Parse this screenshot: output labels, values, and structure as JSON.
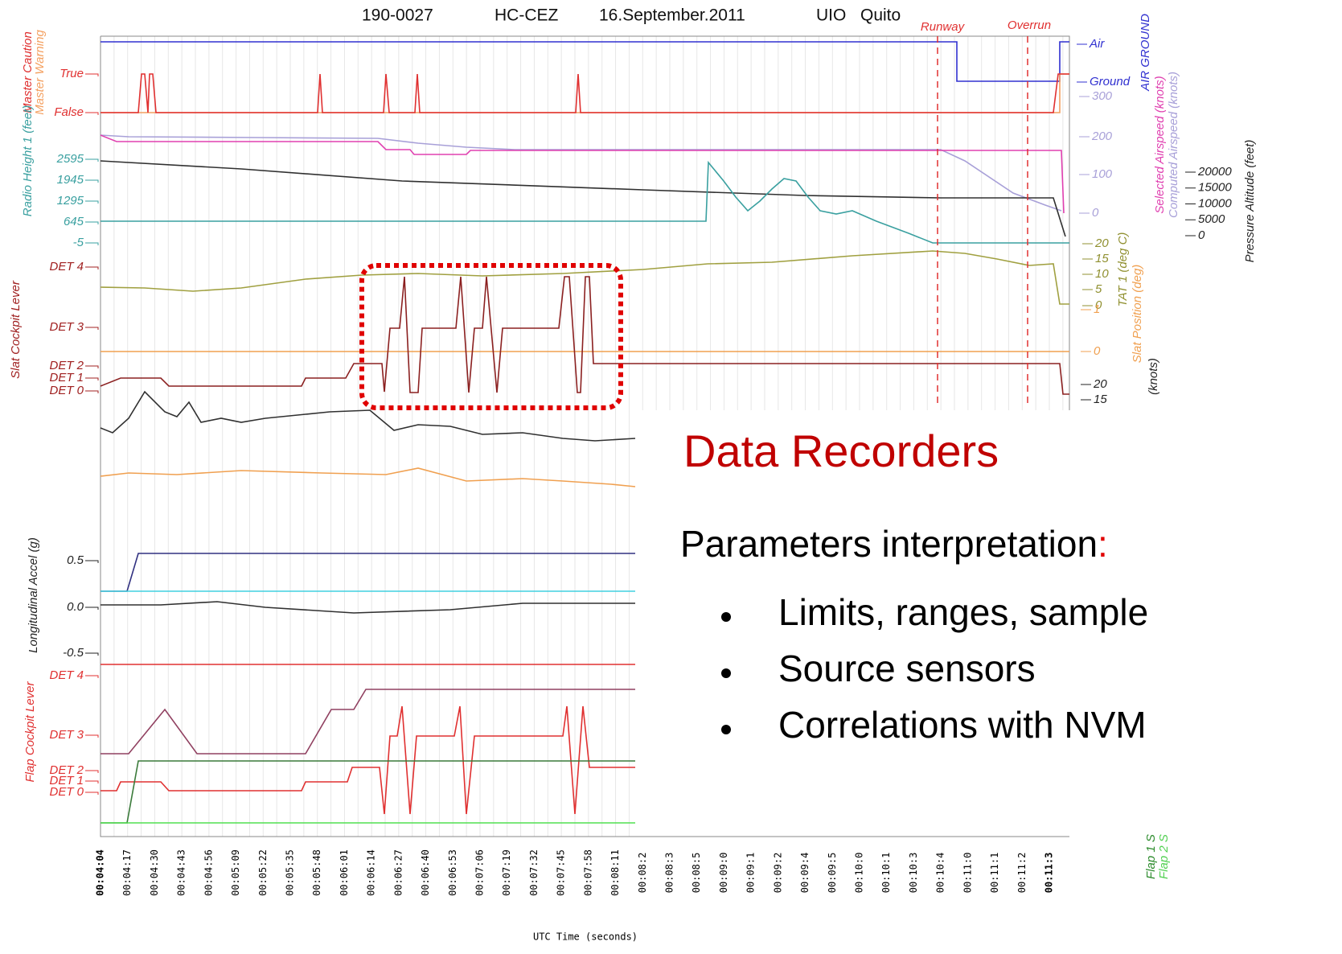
{
  "header": {
    "flight": "190-0027",
    "registration": "HC-CEZ",
    "date": "16.September.2011",
    "airport": "UIO",
    "city": "Quito"
  },
  "markers": [
    "Runway",
    "Overrun"
  ],
  "left_axes": [
    {
      "labels": [
        "Master Caution",
        "Master Warning"
      ],
      "ticks": [
        "True",
        "False"
      ]
    },
    {
      "labels": [
        "Radio Height 1 (feet)"
      ],
      "ticks": [
        "2595",
        "1945",
        "1295",
        "645",
        "-5"
      ]
    },
    {
      "labels": [
        "Slat Cockpit Lever"
      ],
      "ticks": [
        "DET 4",
        "DET 3",
        "DET 2",
        "DET 1",
        "DET 0"
      ]
    },
    {
      "labels": [
        "Longitudinal Accel (g)"
      ],
      "ticks": [
        "0.5",
        "0.0",
        "-0.5"
      ]
    },
    {
      "labels": [
        "Flap Cockpit Lever"
      ],
      "ticks": [
        "DET 4",
        "DET 3",
        "DET 2",
        "DET 1",
        "DET 0"
      ]
    }
  ],
  "right_axes": [
    {
      "labels": [
        "AIR GROUND"
      ],
      "ticks": [
        "Air",
        "Ground"
      ]
    },
    {
      "labels": [
        "Selected Airspeed (knots)",
        "Computed Airspeed (knots)"
      ],
      "ticks": [
        "300",
        "200",
        "100",
        "0"
      ]
    },
    {
      "labels": [
        "Pressure Altitude (feet)"
      ],
      "ticks": [
        "20000",
        "15000",
        "10000",
        "5000",
        "0"
      ]
    },
    {
      "labels": [
        "TAT 1 (deg C)"
      ],
      "ticks": [
        "20",
        "15",
        "10",
        "5",
        "0"
      ]
    },
    {
      "labels": [
        "Slat Position (deg)"
      ],
      "ticks": [
        "1",
        "0"
      ]
    },
    {
      "labels": [
        "(knots)"
      ],
      "ticks": [
        "20",
        "15"
      ]
    },
    {
      "labels": [
        "Flap 1 S",
        "Flap 2 S"
      ],
      "ticks": []
    }
  ],
  "time_axis": {
    "label": "UTC Time (seconds)",
    "ticks": [
      "00:04:04",
      "00:04:17",
      "00:04:30",
      "00:04:43",
      "00:04:56",
      "00:05:09",
      "00:05:22",
      "00:05:35",
      "00:05:48",
      "00:06:01",
      "00:06:14",
      "00:06:27",
      "00:06:40",
      "00:06:53",
      "00:07:06",
      "00:07:19",
      "00:07:32",
      "00:07:45",
      "00:07:58",
      "00:08:11",
      "00:08:2",
      "00:08:3",
      "00:08:5",
      "00:09:0",
      "00:09:1",
      "00:09:2",
      "00:09:4",
      "00:09:5",
      "00:10:0",
      "00:10:1",
      "00:10:3",
      "00:10:4",
      "00:11:0",
      "00:11:1",
      "00:11:2",
      "00:11:3"
    ]
  },
  "slide": {
    "title": "Data Recorders",
    "subtitle": "Parameters interpretation",
    "colon": ":",
    "bullets": [
      "Limits, ranges, sample",
      "Source sensors",
      "Correlations with NVM"
    ]
  }
}
